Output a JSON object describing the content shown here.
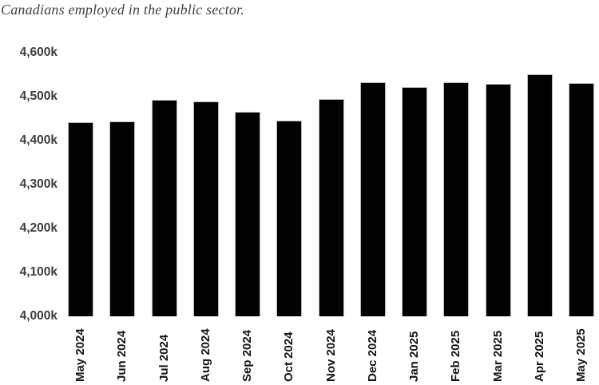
{
  "title": "Canadians employed in the public sector.",
  "chart_data": {
    "type": "bar",
    "title": "Canadians employed in the public sector.",
    "unit": "thousands of people (k)",
    "categories": [
      "May 2024",
      "Jun 2024",
      "Jul 2024",
      "Aug 2024",
      "Sep 2024",
      "Oct 2024",
      "Nov 2024",
      "Dec 2024",
      "Jan 2025",
      "Feb 2025",
      "Mar 2025",
      "Apr 2025",
      "May 2025"
    ],
    "values": [
      4442,
      4444,
      4492,
      4490,
      4465,
      4446,
      4494,
      4532,
      4522,
      4533,
      4529,
      4551,
      4531
    ],
    "y_ticks": [
      {
        "label": "4,600k",
        "value": 4600
      },
      {
        "label": "4,500k",
        "value": 4500
      },
      {
        "label": "4,400k",
        "value": 4400
      },
      {
        "label": "4,300k",
        "value": 4300
      },
      {
        "label": "4,200k",
        "value": 4200
      },
      {
        "label": "4,100k",
        "value": 4100
      },
      {
        "label": "4,000k",
        "value": 4000
      }
    ],
    "ylim": [
      4000,
      4600
    ],
    "xlabel": "",
    "ylabel": "",
    "grid": false,
    "legend": false,
    "bar_color": "#010101",
    "bar_border_color": "#b9b9b9",
    "y_label_color": "#3d3d3d",
    "x_label_color": "#141414",
    "title_color": "#3e4248",
    "background_color": "#ffffff"
  }
}
